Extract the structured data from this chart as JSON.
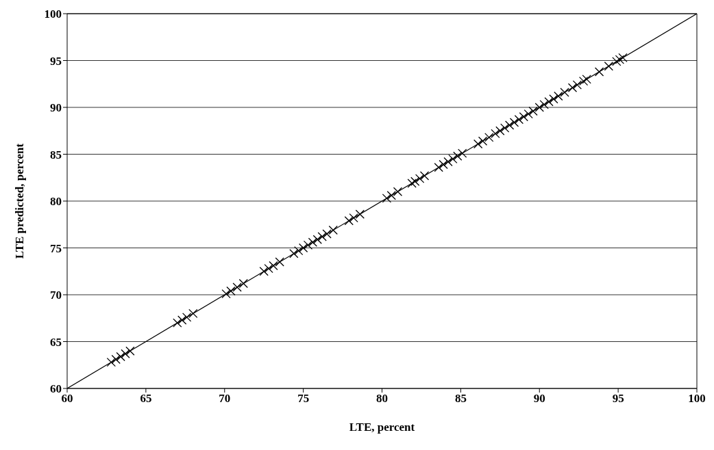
{
  "chart_data": {
    "type": "scatter",
    "xlabel": "LTE, percent",
    "ylabel": "LTE predicted, percent",
    "xlim": [
      60,
      100
    ],
    "ylim": [
      60,
      100
    ],
    "xticks": [
      60,
      65,
      70,
      75,
      80,
      85,
      90,
      95,
      100
    ],
    "yticks": [
      60,
      65,
      70,
      75,
      80,
      85,
      90,
      95,
      100
    ],
    "grid": "y",
    "legend": false,
    "marker": "cross",
    "series": [
      {
        "color": "#000000",
        "x": [
          62.8,
          63.1,
          63.4,
          63.7,
          64.0,
          67.0,
          67.3,
          67.6,
          68.0,
          70.1,
          70.4,
          70.8,
          71.2,
          72.5,
          72.8,
          73.1,
          73.5,
          74.4,
          74.7,
          75.0,
          75.3,
          75.6,
          75.9,
          76.2,
          76.5,
          76.9,
          77.9,
          78.2,
          78.6,
          80.3,
          80.6,
          81.0,
          81.9,
          82.1,
          82.4,
          82.7,
          83.6,
          83.9,
          84.2,
          84.5,
          84.8,
          85.1,
          86.1,
          86.4,
          86.8,
          87.2,
          87.5,
          87.8,
          88.1,
          88.4,
          88.7,
          89.0,
          89.3,
          89.6,
          90.0,
          90.3,
          90.6,
          90.9,
          91.2,
          91.6,
          92.1,
          92.4,
          92.8,
          93.0,
          93.8,
          94.4,
          94.9,
          95.1,
          95.3
        ],
        "values": [
          62.8,
          63.1,
          63.4,
          63.7,
          64.0,
          67.0,
          67.3,
          67.6,
          68.0,
          70.1,
          70.4,
          70.8,
          71.2,
          72.5,
          72.8,
          73.1,
          73.5,
          74.4,
          74.7,
          75.0,
          75.3,
          75.6,
          75.9,
          76.2,
          76.5,
          76.9,
          77.9,
          78.2,
          78.6,
          80.3,
          80.6,
          81.0,
          81.9,
          82.1,
          82.4,
          82.7,
          83.6,
          83.9,
          84.2,
          84.5,
          84.8,
          85.1,
          86.1,
          86.4,
          86.8,
          87.2,
          87.5,
          87.8,
          88.1,
          88.4,
          88.7,
          89.0,
          89.3,
          89.6,
          90.0,
          90.3,
          90.6,
          90.9,
          91.2,
          91.6,
          92.1,
          92.4,
          92.8,
          93.0,
          93.8,
          94.4,
          94.9,
          95.1,
          95.3
        ]
      },
      {
        "type": "line",
        "color": "#000000",
        "marker": "none",
        "x": [
          60,
          100
        ],
        "values": [
          60,
          100
        ]
      }
    ]
  }
}
